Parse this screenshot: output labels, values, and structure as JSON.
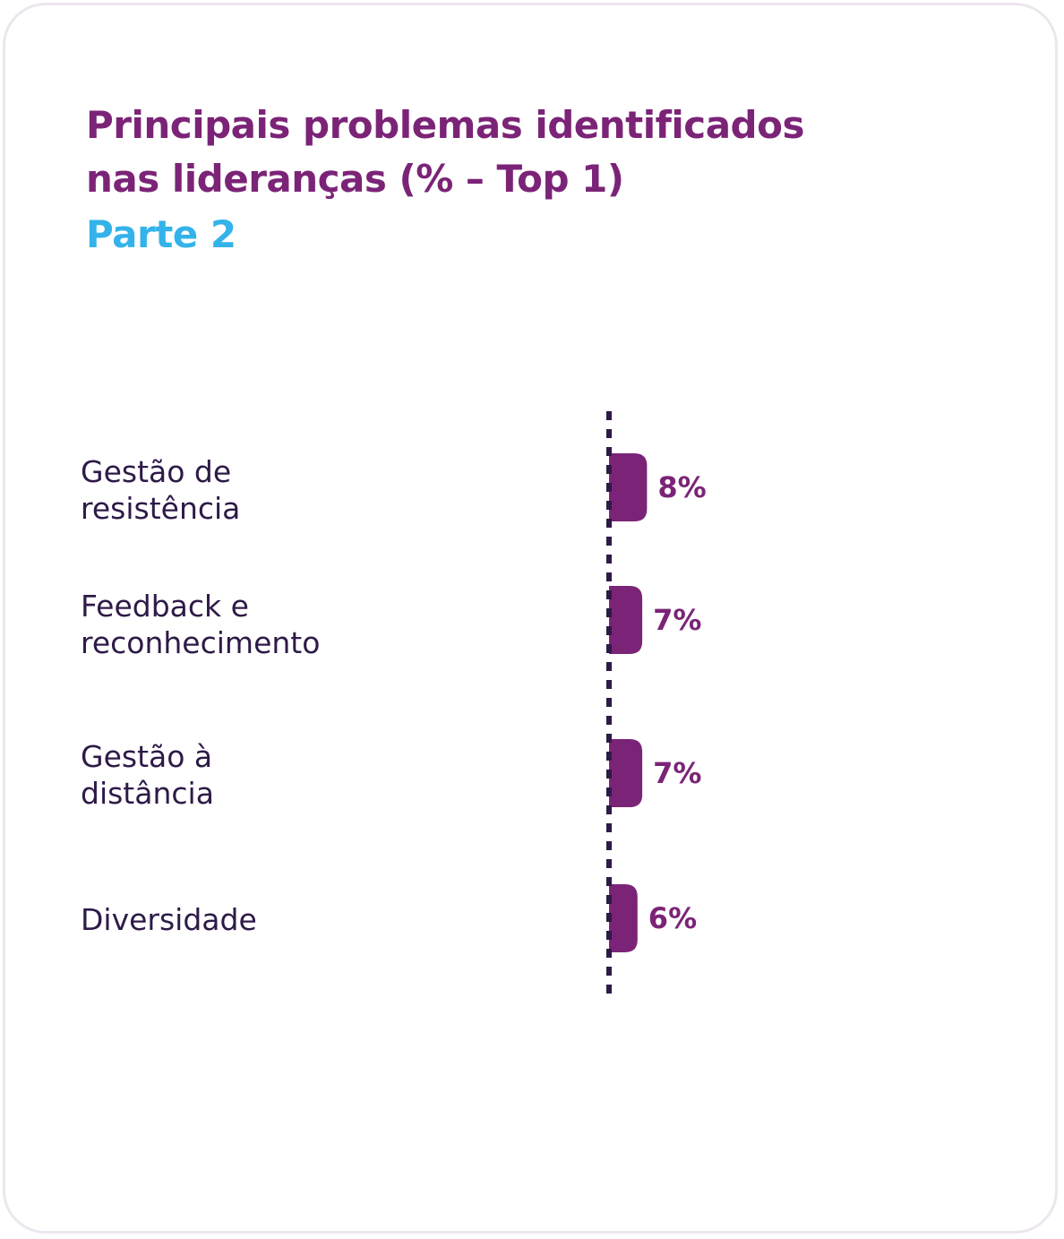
{
  "colors": {
    "title": "#7b2477",
    "subtitle": "#33b3ea",
    "category_text": "#2e1a47",
    "bar": "#7b2477",
    "value_text": "#7b2477",
    "axis": "#2e1a47",
    "card_border": "#ece6ee"
  },
  "chart_data": {
    "type": "bar",
    "orientation": "horizontal",
    "title": "Principais problemas  identificados\nnas lideranças (% – Top 1)",
    "subtitle": "Parte 2",
    "categories": [
      "Gestão de\nresistência",
      "Feedback e\nreconhecimento",
      "Gestão à\ndistância",
      "Diversidade"
    ],
    "values": [
      8,
      7,
      7,
      6
    ],
    "value_labels": [
      "8%",
      "7%",
      "7%",
      "6%"
    ],
    "xlabel": "",
    "ylabel": "",
    "xlim": [
      0,
      100
    ],
    "grid": false,
    "legend": "none"
  }
}
